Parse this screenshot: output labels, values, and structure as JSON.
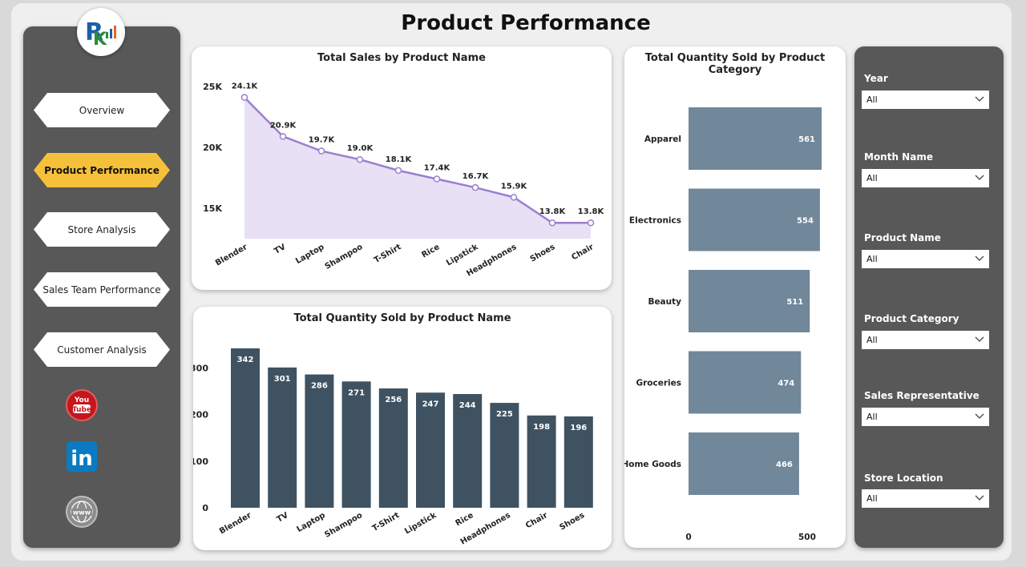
{
  "page": {
    "title": "Product Performance"
  },
  "colors": {
    "active_nav": "#f6c13a",
    "line": "#9b7fcf",
    "area": "#e8e0f4",
    "bar_dark": "#3f5261",
    "bar_light": "#71879a"
  },
  "nav": {
    "items": [
      {
        "label": "Overview",
        "active": false
      },
      {
        "label": "Product Performance",
        "active": true
      },
      {
        "label": "Store Analysis",
        "active": false
      },
      {
        "label": "Sales Team Performance",
        "active": false
      },
      {
        "label": "Customer Analysis",
        "active": false
      }
    ],
    "social": [
      {
        "icon": "youtube-icon",
        "text": "You Tube"
      },
      {
        "icon": "linkedin-icon",
        "text": "in"
      },
      {
        "icon": "globe-icon",
        "text": "www"
      }
    ]
  },
  "filters": [
    {
      "label": "Year",
      "value": "All"
    },
    {
      "label": "Month Name",
      "value": "All"
    },
    {
      "label": "Product Name",
      "value": "All"
    },
    {
      "label": "Product Category",
      "value": "All"
    },
    {
      "label": "Sales Representative",
      "value": "All"
    },
    {
      "label": "Store Location",
      "value": "All"
    }
  ],
  "chart_data": [
    {
      "type": "area",
      "title": "Total Sales by Product Name",
      "categories": [
        "Blender",
        "TV",
        "Laptop",
        "Shampoo",
        "T-Shirt",
        "Rice",
        "Lipstick",
        "Headphones",
        "Shoes",
        "Chair"
      ],
      "values": [
        24.1,
        20.9,
        19.7,
        19.0,
        18.1,
        17.4,
        16.7,
        15.9,
        13.8,
        13.8
      ],
      "data_labels": [
        "24.1K",
        "20.9K",
        "19.7K",
        "19.0K",
        "18.1K",
        "17.4K",
        "16.7K",
        "15.9K",
        "13.8K",
        "13.8K"
      ],
      "yticks": [
        "15K",
        "20K",
        "25K"
      ],
      "ylim": [
        12.5,
        25
      ]
    },
    {
      "type": "bar",
      "title": "Total Quantity Sold by Product Name",
      "categories": [
        "Blender",
        "TV",
        "Laptop",
        "Shampoo",
        "T-Shirt",
        "Lipstick",
        "Rice",
        "Headphones",
        "Chair",
        "Shoes"
      ],
      "values": [
        342,
        301,
        286,
        271,
        256,
        247,
        244,
        225,
        198,
        196
      ],
      "yticks": [
        "0",
        "100",
        "200",
        "300"
      ],
      "ylim": [
        0,
        342
      ]
    },
    {
      "type": "bar",
      "orientation": "horizontal",
      "title": "Total Quantity Sold by Product Category",
      "categories": [
        "Apparel",
        "Electronics",
        "Beauty",
        "Groceries",
        "Home Goods"
      ],
      "values": [
        561,
        554,
        511,
        474,
        466
      ],
      "xticks": [
        "0",
        "500"
      ],
      "xlim": [
        0,
        561
      ]
    }
  ]
}
